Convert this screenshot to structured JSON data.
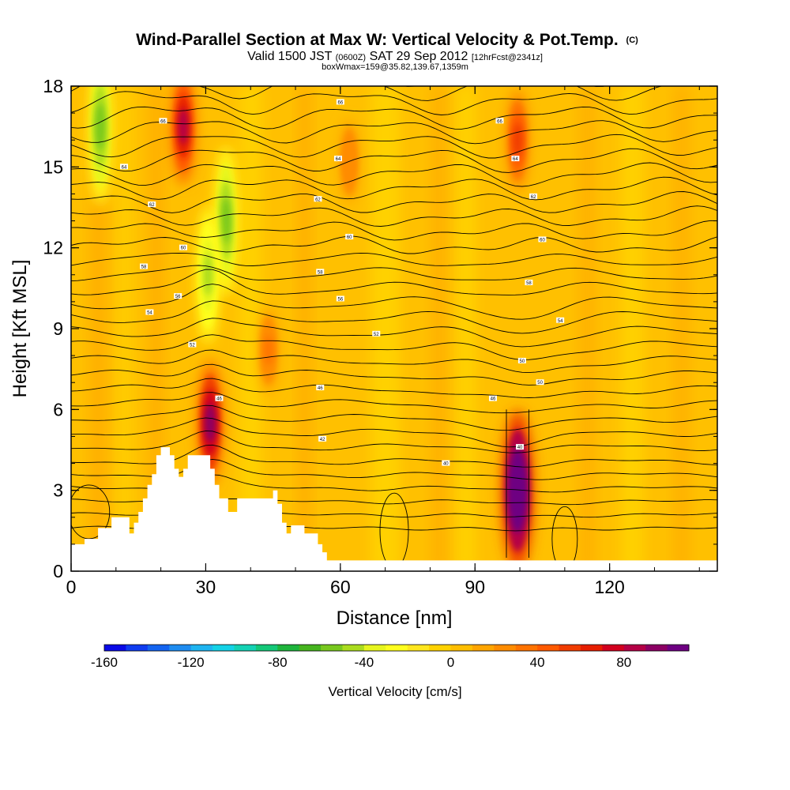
{
  "chart_data": {
    "type": "heatmap",
    "title": "Wind-Parallel Section at Max W: Vertical Velocity & Pot.Temp.",
    "title_mark": "(C)",
    "subtitle_main": "Valid 1500 JST",
    "subtitle_utc": "(0600Z)",
    "subtitle_date": "SAT 29 Sep 2012",
    "subtitle_fcst": "[12hrFcst@2341z]",
    "subtitle_box": "boxWmax=159@35.82,139.67,1359m",
    "xlabel": "Distance [nm]",
    "ylabel": "Height [Kft MSL]",
    "xlim": [
      0,
      144
    ],
    "ylim": [
      0,
      18
    ],
    "x_ticks": [
      0,
      30,
      60,
      90,
      120
    ],
    "y_ticks": [
      0,
      3,
      6,
      9,
      12,
      15,
      18
    ],
    "colorbar": {
      "label": "Vertical Velocity [cm/s]",
      "range": [
        -160,
        110
      ],
      "step": 10,
      "tick_values": [
        -160,
        -120,
        -80,
        -40,
        0,
        40,
        80
      ],
      "colors": [
        "#0a0ae6",
        "#0f3cf0",
        "#1464f0",
        "#1e8cf0",
        "#1eb4f0",
        "#14d2e6",
        "#14d2b4",
        "#14c878",
        "#1eb43c",
        "#46b41e",
        "#78c81e",
        "#aadc1e",
        "#e6f51e",
        "#ffff1e",
        "#ffe61e",
        "#ffd200",
        "#ffbe00",
        "#ffa500",
        "#ff8c00",
        "#ff7300",
        "#ff5a00",
        "#f03c00",
        "#e61e00",
        "#d2001e",
        "#b40046",
        "#8c0064",
        "#6e0082"
      ]
    },
    "terrain_kft": [
      [
        0,
        1.0
      ],
      [
        3,
        1.0
      ],
      [
        3,
        1.2
      ],
      [
        6,
        1.2
      ],
      [
        6,
        1.6
      ],
      [
        9,
        1.6
      ],
      [
        9,
        2.0
      ],
      [
        13,
        2.0
      ],
      [
        13,
        1.4
      ],
      [
        14,
        1.4
      ],
      [
        14,
        1.8
      ],
      [
        15,
        1.8
      ],
      [
        15,
        2.2
      ],
      [
        16,
        2.2
      ],
      [
        16,
        2.7
      ],
      [
        17,
        2.7
      ],
      [
        17,
        3.2
      ],
      [
        18,
        3.2
      ],
      [
        18,
        3.6
      ],
      [
        19,
        3.6
      ],
      [
        19,
        4.3
      ],
      [
        20,
        4.3
      ],
      [
        20,
        4.6
      ],
      [
        22,
        4.6
      ],
      [
        22,
        4.3
      ],
      [
        23,
        4.3
      ],
      [
        23,
        3.8
      ],
      [
        24,
        3.8
      ],
      [
        24,
        3.5
      ],
      [
        25,
        3.5
      ],
      [
        25,
        3.8
      ],
      [
        26,
        3.8
      ],
      [
        26,
        4.3
      ],
      [
        31,
        4.3
      ],
      [
        31,
        3.8
      ],
      [
        32,
        3.8
      ],
      [
        32,
        3.2
      ],
      [
        33,
        3.2
      ],
      [
        33,
        2.7
      ],
      [
        35,
        2.7
      ],
      [
        35,
        2.2
      ],
      [
        37,
        2.2
      ],
      [
        37,
        2.7
      ],
      [
        45,
        2.7
      ],
      [
        45,
        3.0
      ],
      [
        46,
        3.0
      ],
      [
        46,
        2.5
      ],
      [
        47,
        2.5
      ],
      [
        47,
        1.8
      ],
      [
        48,
        1.8
      ],
      [
        48,
        1.4
      ],
      [
        49,
        1.4
      ],
      [
        49,
        1.7
      ],
      [
        52,
        1.7
      ],
      [
        52,
        1.4
      ],
      [
        55,
        1.4
      ],
      [
        55,
        1.0
      ],
      [
        56,
        1.0
      ],
      [
        56,
        0.7
      ],
      [
        57,
        0.7
      ],
      [
        57,
        0.4
      ],
      [
        144,
        0.4
      ]
    ],
    "updrafts": [
      {
        "x": 99.5,
        "z": 3.0,
        "w": 159
      },
      {
        "x": 31.0,
        "z": 5.5,
        "w": 95
      },
      {
        "x": 25.0,
        "z": 16.5,
        "w": 80
      },
      {
        "x": 99.5,
        "z": 16.0,
        "w": 55
      },
      {
        "x": 44.0,
        "z": 8.2,
        "w": 30
      },
      {
        "x": 62.0,
        "z": 15.2,
        "w": 25
      }
    ],
    "downdrafts": [
      {
        "x": 6.5,
        "z": 16.5,
        "w": -60
      },
      {
        "x": 34.5,
        "z": 13.0,
        "w": -55
      },
      {
        "x": 30.5,
        "z": 11.0,
        "w": -45
      }
    ],
    "theta_labels": [
      {
        "x": 20.5,
        "z": 16.7,
        "text": "66"
      },
      {
        "x": 60.0,
        "z": 17.4,
        "text": "66"
      },
      {
        "x": 95.5,
        "z": 16.7,
        "text": "66"
      },
      {
        "x": 11.8,
        "z": 15.0,
        "text": "64"
      },
      {
        "x": 59.5,
        "z": 15.3,
        "text": "64"
      },
      {
        "x": 99.0,
        "z": 15.3,
        "text": "64"
      },
      {
        "x": 18.0,
        "z": 13.6,
        "text": "62"
      },
      {
        "x": 55.0,
        "z": 13.8,
        "text": "62"
      },
      {
        "x": 103.0,
        "z": 13.9,
        "text": "62"
      },
      {
        "x": 25.0,
        "z": 12.0,
        "text": "60"
      },
      {
        "x": 62.0,
        "z": 12.4,
        "text": "60"
      },
      {
        "x": 105.0,
        "z": 12.3,
        "text": "60"
      },
      {
        "x": 16.2,
        "z": 11.3,
        "text": "58"
      },
      {
        "x": 55.5,
        "z": 11.1,
        "text": "58"
      },
      {
        "x": 102.0,
        "z": 10.7,
        "text": "58"
      },
      {
        "x": 23.8,
        "z": 10.2,
        "text": "56"
      },
      {
        "x": 60.0,
        "z": 10.1,
        "text": "56"
      },
      {
        "x": 17.5,
        "z": 9.6,
        "text": "54"
      },
      {
        "x": 109.0,
        "z": 9.3,
        "text": "54"
      },
      {
        "x": 27.0,
        "z": 8.4,
        "text": "52"
      },
      {
        "x": 68.0,
        "z": 8.8,
        "text": "52"
      },
      {
        "x": 100.5,
        "z": 7.8,
        "text": "50"
      },
      {
        "x": 104.5,
        "z": 7.0,
        "text": "50"
      },
      {
        "x": 33.0,
        "z": 6.4,
        "text": "46"
      },
      {
        "x": 55.5,
        "z": 6.8,
        "text": "46"
      },
      {
        "x": 94.0,
        "z": 6.4,
        "text": "46"
      },
      {
        "x": 56.0,
        "z": 4.9,
        "text": "42"
      },
      {
        "x": 83.5,
        "z": 4.0,
        "text": "40"
      },
      {
        "x": 100.0,
        "z": 4.6,
        "text": "40"
      }
    ]
  }
}
